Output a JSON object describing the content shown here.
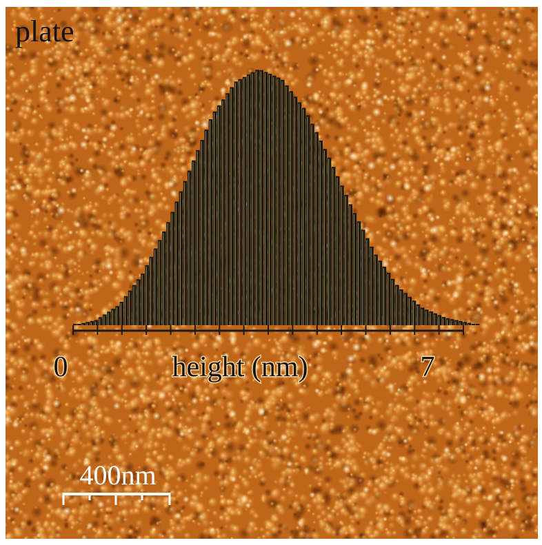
{
  "image": {
    "sample_label": "plate",
    "scale_bar_label": "400nm",
    "palette": {
      "dark": "#5a2304",
      "mid": "#c0661a",
      "light": "#f6c26a",
      "highlight": "#fff0c8"
    }
  },
  "histogram": {
    "x_min_label": "0",
    "x_max_label": "7",
    "axis_title": "height (nm)",
    "x_range": [
      0,
      7
    ],
    "bar_color": "#1c1a10",
    "bar_line_color": "#e8e1a8"
  },
  "chart_data": {
    "type": "bar",
    "title": "",
    "xlabel": "height (nm)",
    "ylabel": "",
    "xlim": [
      0,
      7
    ],
    "x_tick_labels": [
      "0",
      "7"
    ],
    "x": [
      0.0,
      0.4,
      0.8,
      1.2,
      1.6,
      2.0,
      2.4,
      2.8,
      3.2,
      3.6,
      4.0,
      4.4,
      4.8,
      5.2,
      5.6,
      6.0,
      6.4,
      6.8,
      7.0
    ],
    "values": [
      0.0,
      0.02,
      0.08,
      0.2,
      0.38,
      0.6,
      0.82,
      0.95,
      1.0,
      0.96,
      0.84,
      0.66,
      0.46,
      0.28,
      0.15,
      0.07,
      0.03,
      0.01,
      0.0
    ],
    "grid": false,
    "legend": "none"
  }
}
